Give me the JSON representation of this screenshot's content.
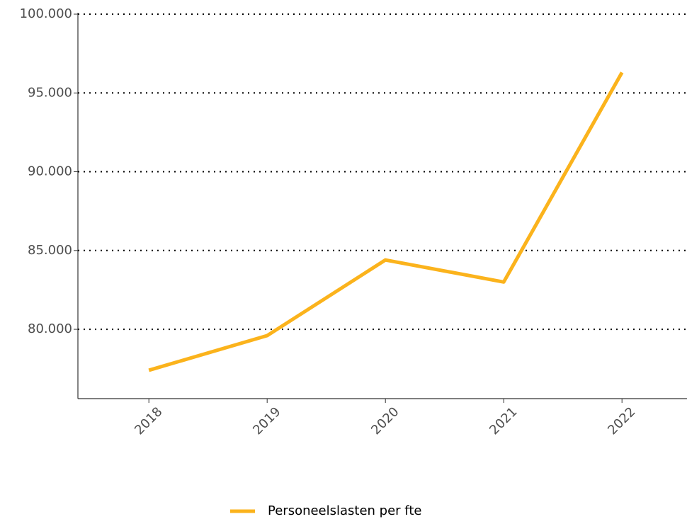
{
  "chart_data": {
    "type": "line",
    "categories": [
      "2018",
      "2019",
      "2020",
      "2021",
      "2022"
    ],
    "series": [
      {
        "name": "Personeelslasten per fte",
        "color": "#fbb31c",
        "values": [
          77400,
          79600,
          84400,
          83000,
          96300
        ]
      }
    ],
    "ylim": [
      75600,
      100000
    ],
    "yticks": [
      {
        "value": 80000,
        "label": "80.000"
      },
      {
        "value": 85000,
        "label": "85.000"
      },
      {
        "value": 90000,
        "label": "90.000"
      },
      {
        "value": 95000,
        "label": "95.000"
      },
      {
        "value": 100000,
        "label": "100.000"
      }
    ],
    "grid": true
  }
}
